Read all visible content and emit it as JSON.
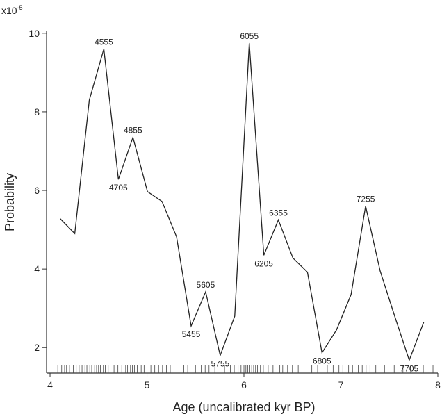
{
  "chart_data": {
    "type": "line",
    "xlabel": "Age (uncalibrated kyr BP)",
    "ylabel": "Probability",
    "y_multiplier": {
      "base": "x10",
      "exponent": "-5"
    },
    "x": [
      4.105,
      4.255,
      4.405,
      4.555,
      4.705,
      4.855,
      5.005,
      5.155,
      5.305,
      5.455,
      5.605,
      5.755,
      5.905,
      6.055,
      6.205,
      6.355,
      6.505,
      6.655,
      6.805,
      6.955,
      7.105,
      7.255,
      7.405,
      7.555,
      7.705,
      7.855
    ],
    "values": [
      5.28,
      4.9,
      8.3,
      9.6,
      6.28,
      7.35,
      5.97,
      5.72,
      4.82,
      2.55,
      3.42,
      1.8,
      2.8,
      9.75,
      4.35,
      5.25,
      4.28,
      3.92,
      1.87,
      2.45,
      3.35,
      5.6,
      3.95,
      2.8,
      1.68,
      2.65
    ],
    "point_labels": [
      null,
      null,
      null,
      "4555",
      "4705",
      "4855",
      null,
      null,
      null,
      "5455",
      "5605",
      "5755",
      null,
      "6055",
      "6205",
      "6355",
      null,
      null,
      "6805",
      null,
      null,
      "7255",
      null,
      null,
      "7705",
      null
    ],
    "color": "#222222",
    "rug": [
      4.04,
      4.06,
      4.08,
      4.12,
      4.15,
      4.17,
      4.2,
      4.24,
      4.27,
      4.3,
      4.33,
      4.36,
      4.38,
      4.41,
      4.43,
      4.46,
      4.48,
      4.5,
      4.52,
      4.55,
      4.57,
      4.6,
      4.62,
      4.66,
      4.7,
      4.74,
      4.78,
      4.8,
      4.83,
      4.85,
      4.87,
      4.9,
      4.94,
      4.97,
      5.0,
      5.04,
      5.08,
      5.12,
      5.16,
      5.2,
      5.24,
      5.28,
      5.33,
      5.38,
      5.42,
      5.5,
      5.56,
      5.6,
      5.64,
      5.7,
      5.8,
      5.86,
      5.9,
      5.94,
      5.97,
      6.0,
      6.02,
      6.04,
      6.06,
      6.08,
      6.1,
      6.12,
      6.14,
      6.17,
      6.2,
      6.25,
      6.3,
      6.34,
      6.37,
      6.4,
      6.45,
      6.5,
      6.56,
      6.62,
      6.7,
      6.76,
      6.86,
      6.92,
      6.98,
      7.02,
      7.08,
      7.12,
      7.18,
      7.22,
      7.26,
      7.3,
      7.36,
      7.45,
      7.55,
      7.64,
      7.72,
      7.85,
      7.95
    ],
    "xlim": [
      3.964,
      8.0
    ],
    "xticks": [
      4,
      5,
      6,
      7,
      8
    ],
    "ylim": [
      1.35,
      10.05
    ],
    "yticks": [
      2,
      4,
      6,
      8,
      10
    ]
  }
}
